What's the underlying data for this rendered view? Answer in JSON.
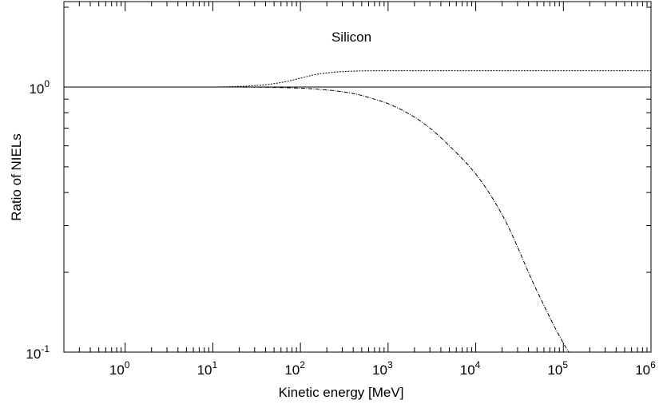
{
  "chart_data": {
    "type": "line",
    "annotation": "Silicon",
    "xlabel": "Kinetic energy   [MeV]",
    "ylabel": "Ratio of NIELs",
    "x_scale": "log",
    "y_scale": "log",
    "xlim": [
      0.2,
      1000000
    ],
    "ylim": [
      0.1,
      2.1
    ],
    "grid": false,
    "x_tick_labels": [
      {
        "base": "10",
        "exp": "0",
        "value": 1
      },
      {
        "base": "10",
        "exp": "1",
        "value": 10
      },
      {
        "base": "10",
        "exp": "2",
        "value": 100
      },
      {
        "base": "10",
        "exp": "3",
        "value": 1000
      },
      {
        "base": "10",
        "exp": "4",
        "value": 10000
      },
      {
        "base": "10",
        "exp": "5",
        "value": 100000
      },
      {
        "base": "10",
        "exp": "6",
        "value": 1000000
      }
    ],
    "y_tick_labels": [
      {
        "base": "10",
        "exp": "0",
        "value": 1
      },
      {
        "base": "10",
        "exp": "-1",
        "value": 0.1
      }
    ],
    "series": [
      {
        "style": "solid",
        "x": [
          0.2,
          1,
          10,
          100,
          1000,
          10000,
          100000,
          1000000
        ],
        "y": [
          1,
          1,
          1,
          1,
          1,
          1,
          1,
          1
        ]
      },
      {
        "style": "dotted",
        "x": [
          0.2,
          1,
          10,
          20,
          40,
          70,
          100,
          150,
          200,
          300,
          500,
          1000,
          10000,
          100000,
          1000000
        ],
        "y": [
          1,
          1,
          1,
          1.005,
          1.02,
          1.05,
          1.08,
          1.115,
          1.13,
          1.143,
          1.15,
          1.152,
          1.152,
          1.152,
          1.152
        ]
      },
      {
        "style": "dash-dot",
        "x": [
          0.2,
          1,
          10,
          30,
          100,
          200,
          400,
          700,
          1000,
          2000,
          3000,
          5000,
          10000,
          20000,
          50000,
          100000,
          120000
        ],
        "y": [
          1,
          1,
          1,
          0.999,
          0.99,
          0.975,
          0.945,
          0.9,
          0.865,
          0.77,
          0.7,
          0.6,
          0.47,
          0.33,
          0.17,
          0.108,
          0.098
        ]
      }
    ]
  }
}
